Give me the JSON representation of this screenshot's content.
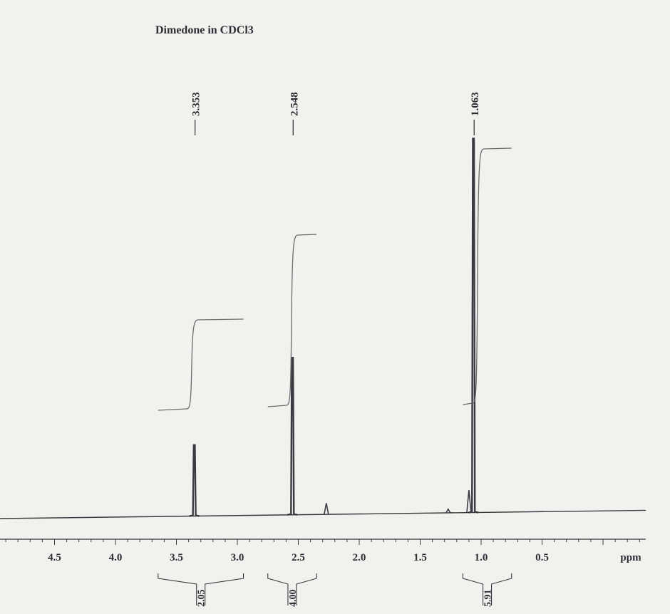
{
  "chart_data": {
    "type": "line",
    "title": "Dimedone in CDCl3",
    "xlabel": "ppm",
    "xlim": [
      -0.4,
      4.9
    ],
    "x_reversed": true,
    "x_ticks": [
      "4.5",
      "4.0",
      "3.5",
      "3.0",
      "2.5",
      "2.0",
      "1.5",
      "1.0",
      "0.5"
    ],
    "peaks": [
      {
        "label": "3.353",
        "ppm": 3.353,
        "height": 0.19
      },
      {
        "label": "2.548",
        "ppm": 2.548,
        "height": 0.42
      },
      {
        "label": "1.063",
        "ppm": 1.063,
        "height": 1.0
      }
    ],
    "minor_peaks": [
      {
        "ppm": 2.27,
        "height": 0.03
      },
      {
        "ppm": 1.1,
        "height": 0.06
      },
      {
        "ppm": 1.27,
        "height": 0.01
      }
    ],
    "integrals": [
      {
        "label": "2.05",
        "from": 3.65,
        "to": 2.95,
        "value": 2.05
      },
      {
        "label": "4.00",
        "from": 2.75,
        "to": 2.35,
        "value": 4.0
      },
      {
        "label": "5.91",
        "from": 1.15,
        "to": 0.75,
        "value": 5.91
      }
    ],
    "colors": {
      "trace": "#3a3a42",
      "background": "#f1f2ee"
    }
  }
}
